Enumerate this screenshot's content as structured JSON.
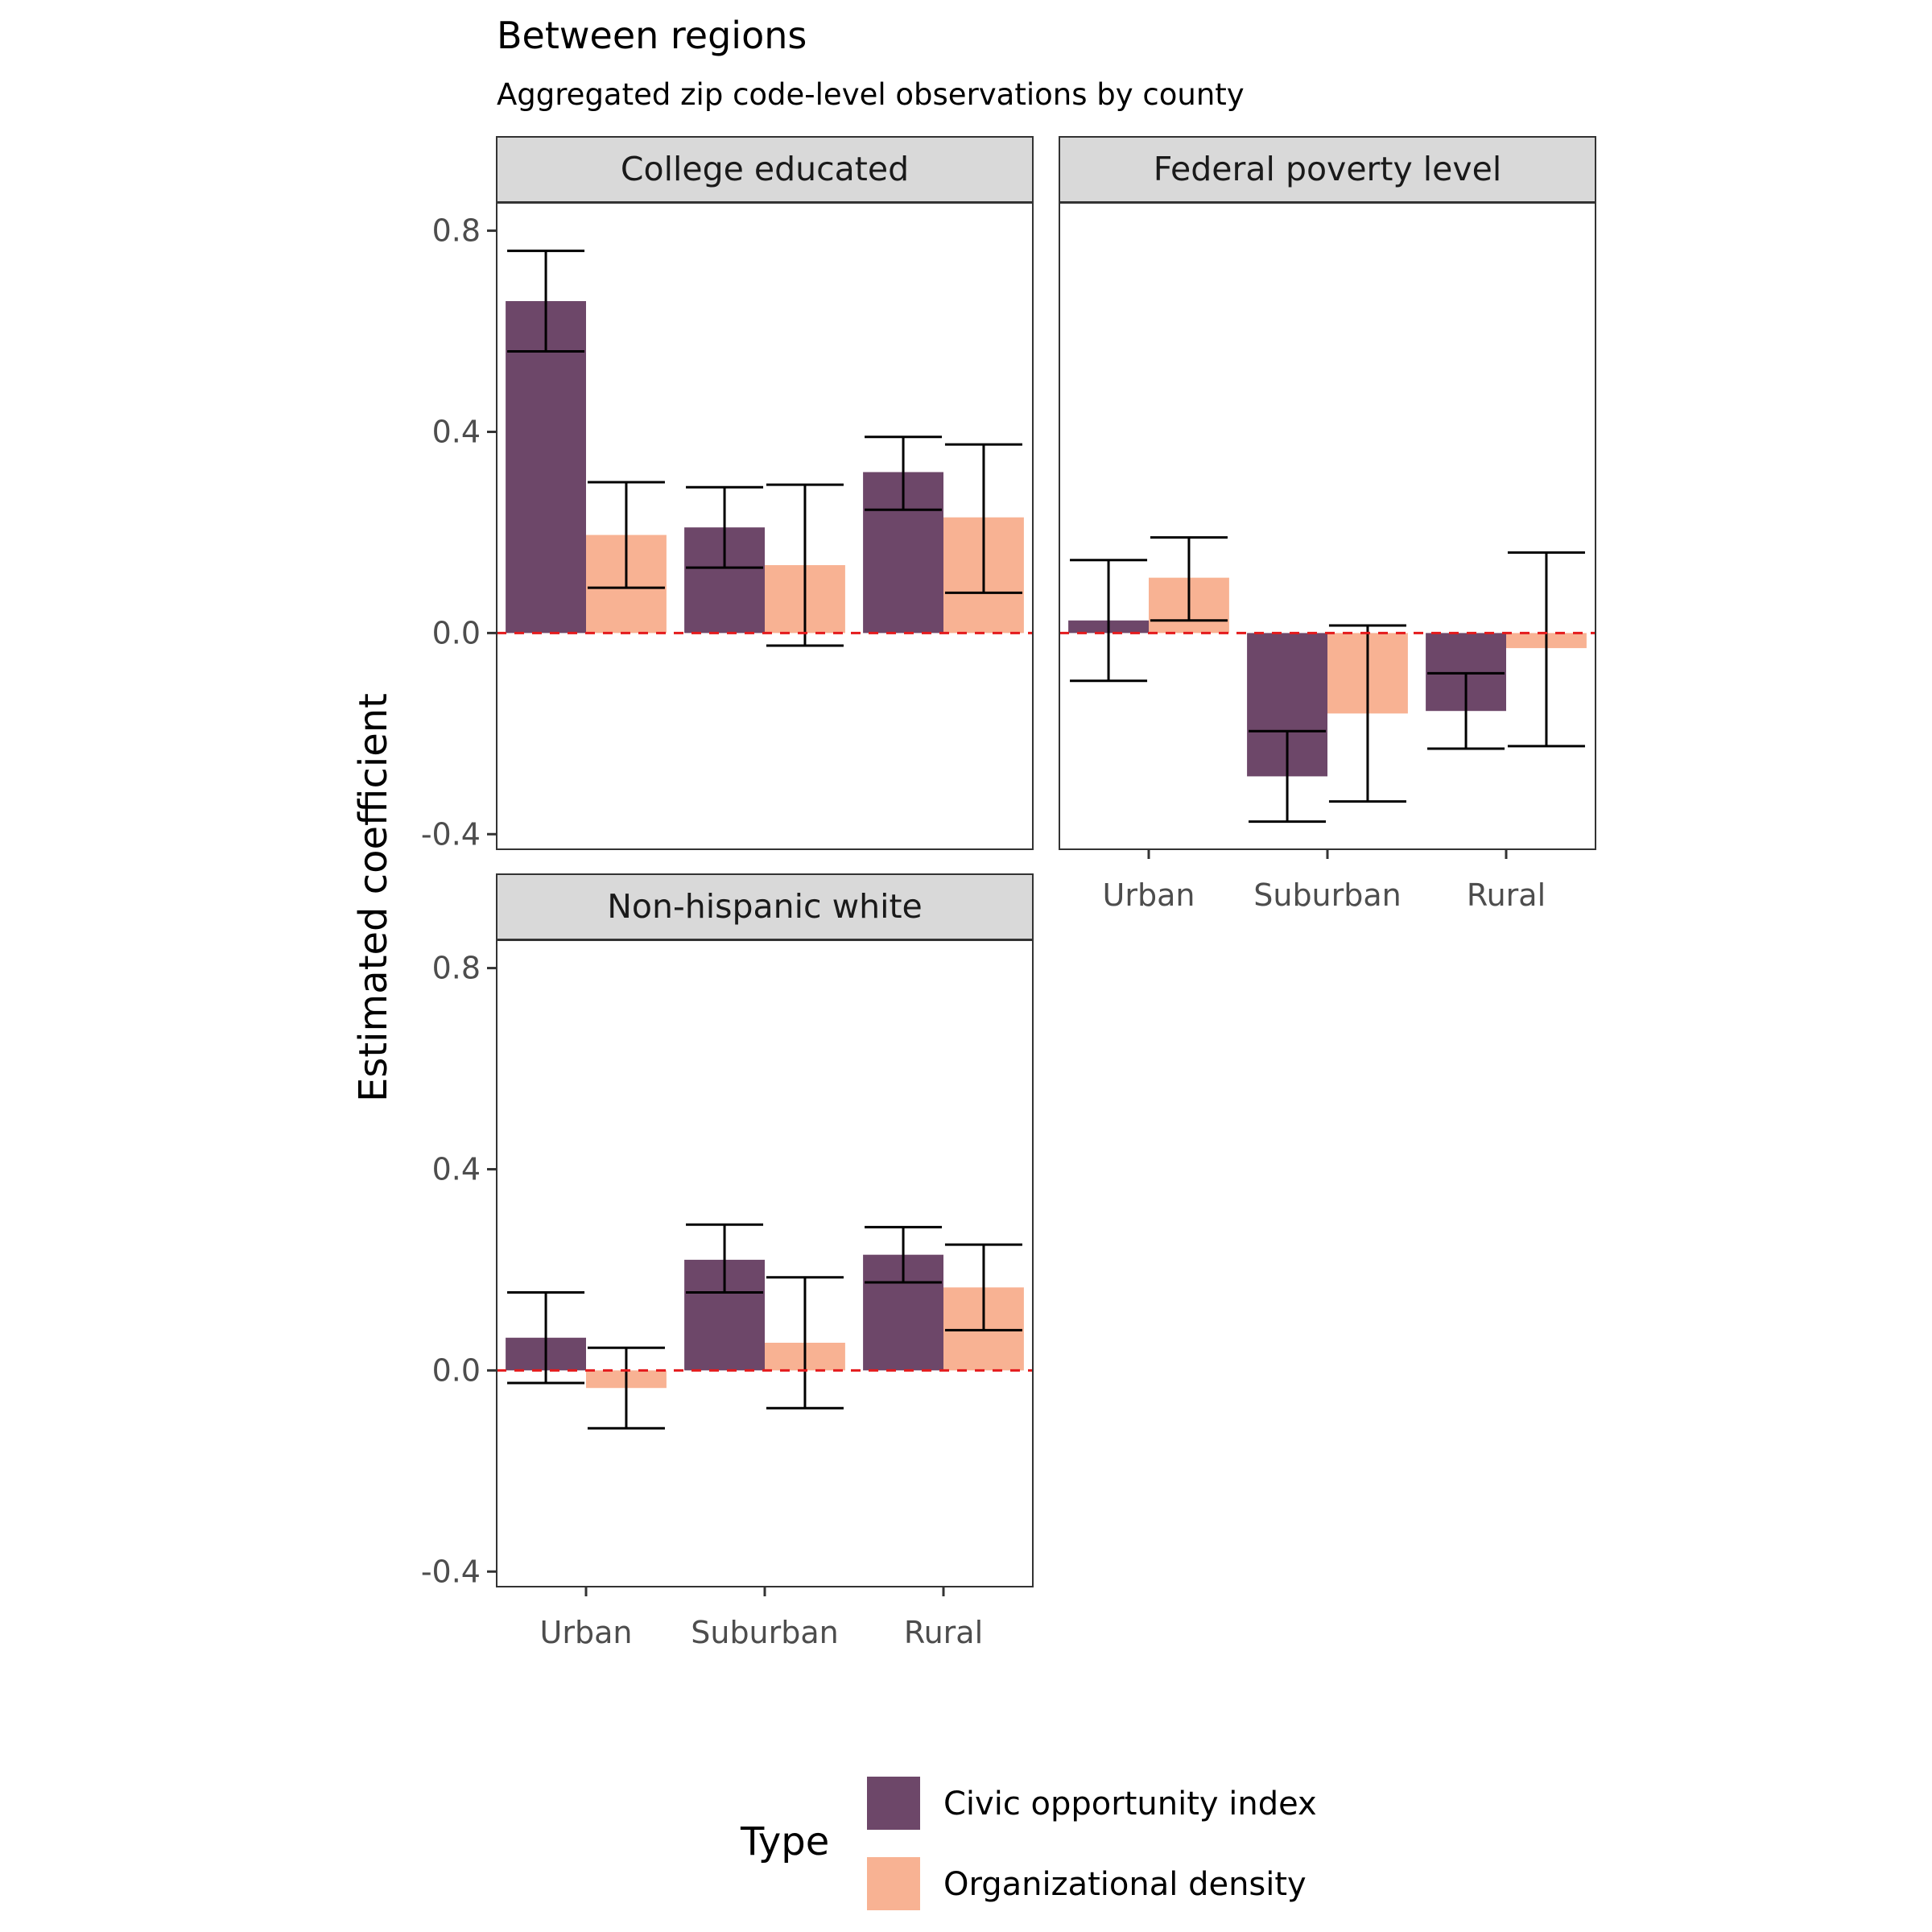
{
  "chart_data": {
    "type": "bar",
    "title": "Between regions",
    "subtitle": "Aggregated zip code-level observations by county",
    "ylabel": "Estimated coefficient",
    "xlabel": "",
    "ylim": [
      -0.43,
      0.8
    ],
    "yticks": [
      -0.4,
      0.0,
      0.4,
      0.8
    ],
    "ytick_labels": [
      "-0.4",
      "0.0",
      "0.4",
      "0.8"
    ],
    "categories": [
      "Urban",
      "Suburban",
      "Rural"
    ],
    "reference_line": {
      "y": 0.0,
      "color": "#e41a1c",
      "style": "dashed"
    },
    "grid": false,
    "legend": {
      "title": "Type",
      "position": "bottom",
      "entries": [
        {
          "name": "Civic opportunity index",
          "color": "#6d4769"
        },
        {
          "name": "Organizational density",
          "color": "#f8b293"
        }
      ]
    },
    "facets": [
      {
        "name": "College educated",
        "series": [
          {
            "name": "Civic opportunity index",
            "values": [
              0.66,
              0.21,
              0.32
            ],
            "lower": [
              0.56,
              0.13,
              0.245
            ],
            "upper": [
              0.76,
              0.29,
              0.39
            ]
          },
          {
            "name": "Organizational density",
            "values": [
              0.195,
              0.135,
              0.23
            ],
            "lower": [
              0.09,
              -0.025,
              0.08
            ],
            "upper": [
              0.3,
              0.295,
              0.375
            ]
          }
        ]
      },
      {
        "name": "Federal poverty level",
        "series": [
          {
            "name": "Civic opportunity index",
            "values": [
              0.025,
              -0.285,
              -0.155
            ],
            "lower": [
              -0.095,
              -0.375,
              -0.23
            ],
            "upper": [
              0.145,
              -0.195,
              -0.08
            ]
          },
          {
            "name": "Organizational density",
            "values": [
              0.11,
              -0.16,
              -0.03
            ],
            "lower": [
              0.025,
              -0.335,
              -0.225
            ],
            "upper": [
              0.19,
              0.015,
              0.16
            ]
          }
        ]
      },
      {
        "name": "Non-hispanic white",
        "series": [
          {
            "name": "Civic opportunity index",
            "values": [
              0.065,
              0.22,
              0.23
            ],
            "lower": [
              -0.025,
              0.155,
              0.175
            ],
            "upper": [
              0.155,
              0.29,
              0.285
            ]
          },
          {
            "name": "Organizational density",
            "values": [
              -0.035,
              0.055,
              0.165
            ],
            "lower": [
              -0.115,
              -0.075,
              0.08
            ],
            "upper": [
              0.045,
              0.185,
              0.25
            ]
          }
        ]
      }
    ]
  }
}
